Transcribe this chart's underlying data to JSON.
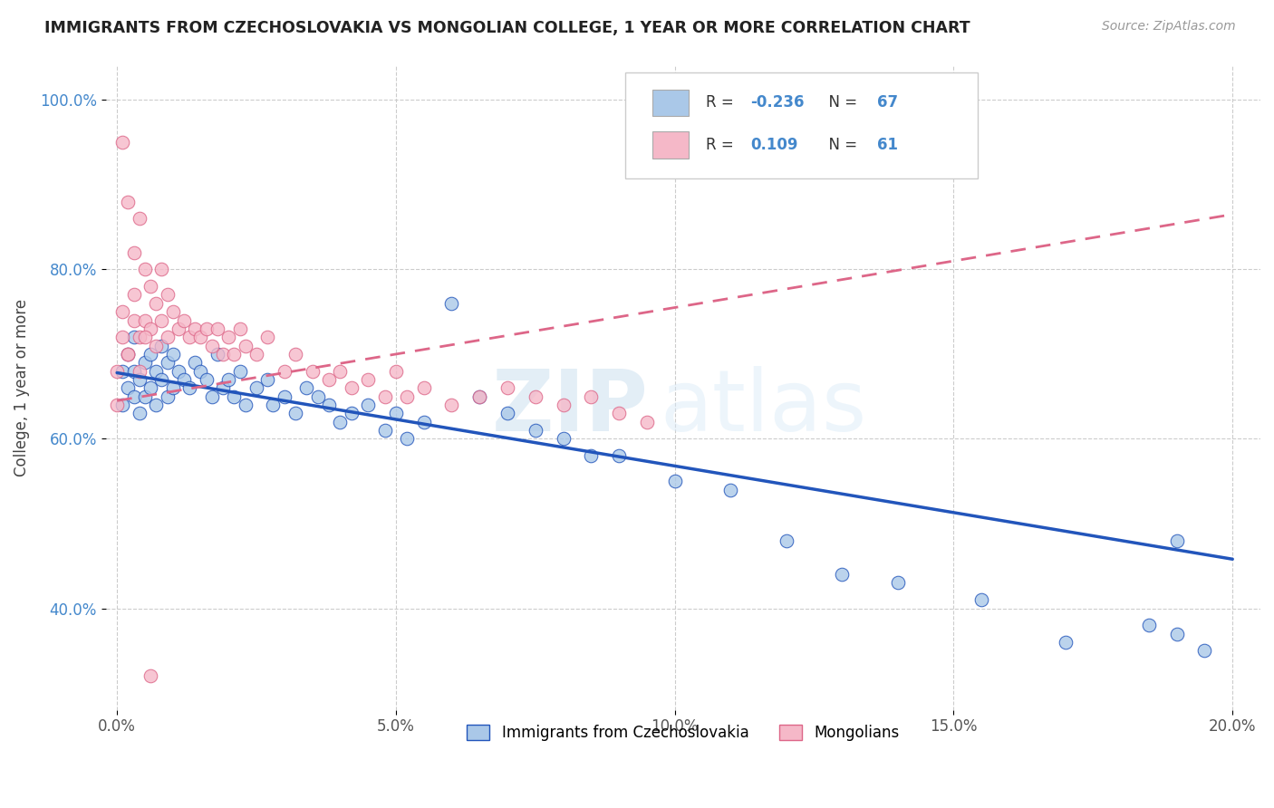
{
  "title": "IMMIGRANTS FROM CZECHOSLOVAKIA VS MONGOLIAN COLLEGE, 1 YEAR OR MORE CORRELATION CHART",
  "source": "Source: ZipAtlas.com",
  "ylabel": "College, 1 year or more",
  "xlim": [
    -0.002,
    0.205
  ],
  "ylim": [
    0.28,
    1.04
  ],
  "xtick_labels": [
    "0.0%",
    "5.0%",
    "10.0%",
    "15.0%",
    "20.0%"
  ],
  "xtick_vals": [
    0.0,
    0.05,
    0.1,
    0.15,
    0.2
  ],
  "ytick_labels": [
    "40.0%",
    "60.0%",
    "80.0%",
    "100.0%"
  ],
  "ytick_vals": [
    0.4,
    0.6,
    0.8,
    1.0
  ],
  "blue_color": "#aac8e8",
  "pink_color": "#f5b8c8",
  "blue_line_color": "#2255bb",
  "pink_line_color": "#dd6688",
  "R_blue": -0.236,
  "N_blue": 67,
  "R_pink": 0.109,
  "N_pink": 61,
  "watermark_zip": "ZIP",
  "watermark_atlas": "atlas",
  "legend_label_blue": "Immigrants from Czechoslovakia",
  "legend_label_pink": "Mongolians",
  "blue_trend_x": [
    0.0,
    0.2
  ],
  "blue_trend_y": [
    0.678,
    0.458
  ],
  "pink_trend_x": [
    0.0,
    0.2
  ],
  "pink_trend_y": [
    0.645,
    0.865
  ],
  "blue_scatter_x": [
    0.001,
    0.001,
    0.002,
    0.002,
    0.003,
    0.003,
    0.003,
    0.004,
    0.004,
    0.005,
    0.005,
    0.006,
    0.006,
    0.007,
    0.007,
    0.008,
    0.008,
    0.009,
    0.009,
    0.01,
    0.01,
    0.011,
    0.012,
    0.013,
    0.014,
    0.015,
    0.016,
    0.017,
    0.018,
    0.019,
    0.02,
    0.021,
    0.022,
    0.023,
    0.025,
    0.027,
    0.028,
    0.03,
    0.032,
    0.034,
    0.036,
    0.038,
    0.04,
    0.042,
    0.045,
    0.048,
    0.05,
    0.052,
    0.055,
    0.06,
    0.065,
    0.07,
    0.075,
    0.08,
    0.085,
    0.09,
    0.1,
    0.11,
    0.12,
    0.13,
    0.14,
    0.155,
    0.17,
    0.185,
    0.19,
    0.195,
    0.19
  ],
  "blue_scatter_y": [
    0.68,
    0.64,
    0.7,
    0.66,
    0.68,
    0.65,
    0.72,
    0.67,
    0.63,
    0.69,
    0.65,
    0.7,
    0.66,
    0.68,
    0.64,
    0.71,
    0.67,
    0.69,
    0.65,
    0.7,
    0.66,
    0.68,
    0.67,
    0.66,
    0.69,
    0.68,
    0.67,
    0.65,
    0.7,
    0.66,
    0.67,
    0.65,
    0.68,
    0.64,
    0.66,
    0.67,
    0.64,
    0.65,
    0.63,
    0.66,
    0.65,
    0.64,
    0.62,
    0.63,
    0.64,
    0.61,
    0.63,
    0.6,
    0.62,
    0.76,
    0.65,
    0.63,
    0.61,
    0.6,
    0.58,
    0.58,
    0.55,
    0.54,
    0.48,
    0.44,
    0.43,
    0.41,
    0.36,
    0.38,
    0.37,
    0.35,
    0.48
  ],
  "pink_scatter_x": [
    0.0,
    0.001,
    0.001,
    0.002,
    0.002,
    0.003,
    0.003,
    0.004,
    0.004,
    0.005,
    0.005,
    0.006,
    0.006,
    0.007,
    0.007,
    0.008,
    0.008,
    0.009,
    0.009,
    0.01,
    0.011,
    0.012,
    0.013,
    0.014,
    0.015,
    0.016,
    0.017,
    0.018,
    0.019,
    0.02,
    0.021,
    0.022,
    0.023,
    0.025,
    0.027,
    0.03,
    0.032,
    0.035,
    0.038,
    0.04,
    0.042,
    0.045,
    0.048,
    0.05,
    0.052,
    0.055,
    0.06,
    0.065,
    0.07,
    0.075,
    0.08,
    0.085,
    0.09,
    0.095,
    0.0,
    0.001,
    0.002,
    0.003,
    0.004,
    0.005,
    0.006
  ],
  "pink_scatter_y": [
    0.68,
    0.95,
    0.72,
    0.88,
    0.7,
    0.82,
    0.74,
    0.86,
    0.72,
    0.8,
    0.74,
    0.78,
    0.73,
    0.76,
    0.71,
    0.8,
    0.74,
    0.77,
    0.72,
    0.75,
    0.73,
    0.74,
    0.72,
    0.73,
    0.72,
    0.73,
    0.71,
    0.73,
    0.7,
    0.72,
    0.7,
    0.73,
    0.71,
    0.7,
    0.72,
    0.68,
    0.7,
    0.68,
    0.67,
    0.68,
    0.66,
    0.67,
    0.65,
    0.68,
    0.65,
    0.66,
    0.64,
    0.65,
    0.66,
    0.65,
    0.64,
    0.65,
    0.63,
    0.62,
    0.64,
    0.75,
    0.7,
    0.77,
    0.68,
    0.72,
    0.32
  ]
}
